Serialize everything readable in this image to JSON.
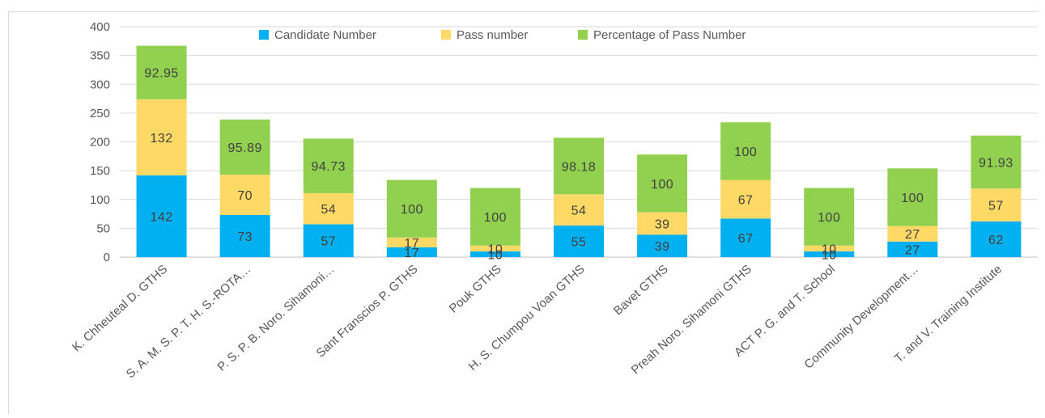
{
  "chart_data": {
    "type": "bar",
    "stacked": true,
    "title": "",
    "xlabel": "",
    "ylabel": "",
    "ylim": [
      0,
      400
    ],
    "yticks": [
      0,
      50,
      100,
      150,
      200,
      250,
      300,
      350,
      400
    ],
    "grid": true,
    "legend_position": "top",
    "categories": [
      "K. Chheuteal D. GTHS",
      "S. A. M. S. P. T. H. S.-ROTA…",
      "P. S. P. B. Noro. Sihamoni…",
      "Sant Franscios P. GTHS",
      "Pouk GTHS",
      "H. S. Chumpou Voan GTHS",
      "Bavet GTHS",
      "Preah Noro. Sihamoni GTHS",
      "ACT P. G. and T. School",
      "Community Development…",
      "T. and V. Training Institute"
    ],
    "series": [
      {
        "name": "Candidate Number",
        "color": "#00b0f0",
        "values": [
          142,
          73,
          57,
          17,
          10,
          55,
          39,
          67,
          10,
          27,
          62
        ]
      },
      {
        "name": "Pass number",
        "color": "#ffd966",
        "values": [
          132,
          70,
          54,
          17,
          10,
          54,
          39,
          67,
          10,
          27,
          57
        ]
      },
      {
        "name": "Percentage of Pass Number",
        "color": "#92d050",
        "values": [
          92.95,
          95.89,
          94.73,
          100,
          100,
          98.18,
          100,
          100,
          100,
          100,
          91.93
        ]
      }
    ]
  }
}
